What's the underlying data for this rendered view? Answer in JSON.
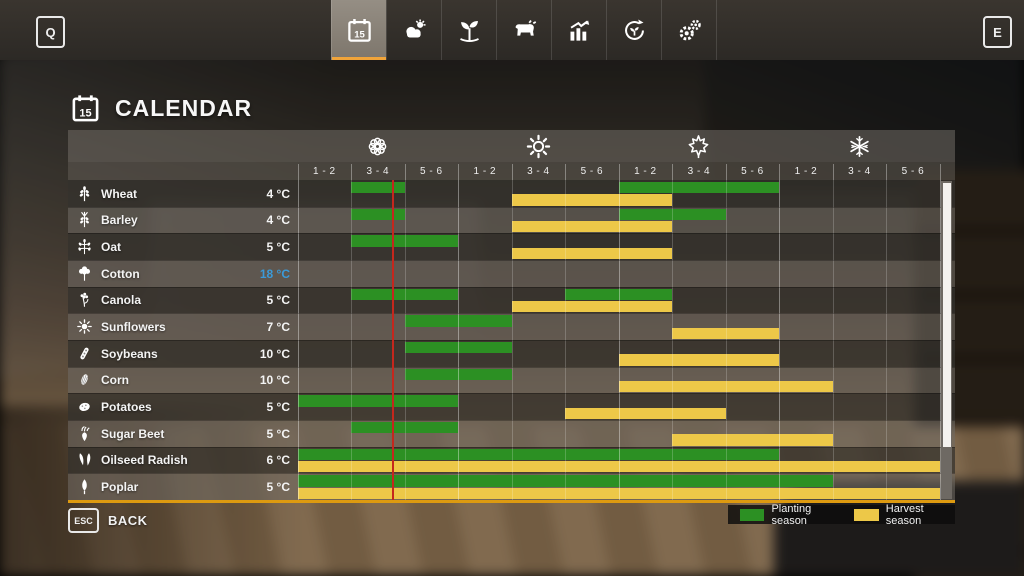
{
  "topbar": {
    "left_key": "Q",
    "right_key": "E",
    "tabs": [
      {
        "name": "calendar",
        "icon": "calendar-icon",
        "selected": true
      },
      {
        "name": "weather",
        "icon": "weather-icon",
        "selected": false
      },
      {
        "name": "crops",
        "icon": "plant-icon",
        "selected": false
      },
      {
        "name": "animals",
        "icon": "animals-icon",
        "selected": false
      },
      {
        "name": "statistics",
        "icon": "stats-icon",
        "selected": false
      },
      {
        "name": "crop-rotation",
        "icon": "rotation-icon",
        "selected": false
      },
      {
        "name": "settings",
        "icon": "settings-icon",
        "selected": false
      }
    ]
  },
  "page": {
    "title": "CALENDAR"
  },
  "chart_data": {
    "type": "table",
    "title": "CALENDAR",
    "seasons": [
      {
        "name": "spring",
        "icon": "flower-icon"
      },
      {
        "name": "summer",
        "icon": "sun-icon"
      },
      {
        "name": "autumn",
        "icon": "leaf-icon"
      },
      {
        "name": "winter",
        "icon": "snowflake-icon"
      }
    ],
    "period_labels": [
      "1 - 2",
      "3 - 4",
      "5 - 6"
    ],
    "columns_per_season": 3,
    "current_position": 1.77,
    "crops": [
      {
        "name": "Wheat",
        "temp": "4 °C",
        "temp_highlight": false,
        "icon": "wheat-icon",
        "planting": [
          [
            1,
            2
          ],
          [
            6,
            9
          ]
        ],
        "harvest": [
          [
            4,
            7
          ]
        ]
      },
      {
        "name": "Barley",
        "temp": "4 °C",
        "temp_highlight": false,
        "icon": "barley-icon",
        "planting": [
          [
            1,
            2
          ],
          [
            6,
            8
          ]
        ],
        "harvest": [
          [
            4,
            7
          ]
        ]
      },
      {
        "name": "Oat",
        "temp": "5 °C",
        "temp_highlight": false,
        "icon": "oat-icon",
        "planting": [
          [
            1,
            3
          ]
        ],
        "harvest": [
          [
            4,
            7
          ]
        ]
      },
      {
        "name": "Cotton",
        "temp": "18 °C",
        "temp_highlight": true,
        "icon": "cotton-icon",
        "planting": [],
        "harvest": []
      },
      {
        "name": "Canola",
        "temp": "5 °C",
        "temp_highlight": false,
        "icon": "canola-icon",
        "planting": [
          [
            1,
            3
          ],
          [
            5,
            7
          ]
        ],
        "harvest": [
          [
            4,
            7
          ]
        ]
      },
      {
        "name": "Sunflowers",
        "temp": "7 °C",
        "temp_highlight": false,
        "icon": "sunflower-icon",
        "planting": [
          [
            2,
            4
          ]
        ],
        "harvest": [
          [
            7,
            9
          ]
        ]
      },
      {
        "name": "Soybeans",
        "temp": "10 °C",
        "temp_highlight": false,
        "icon": "soybean-icon",
        "planting": [
          [
            2,
            4
          ]
        ],
        "harvest": [
          [
            6,
            9
          ]
        ]
      },
      {
        "name": "Corn",
        "temp": "10 °C",
        "temp_highlight": false,
        "icon": "corn-icon",
        "planting": [
          [
            2,
            4
          ]
        ],
        "harvest": [
          [
            6,
            10
          ]
        ]
      },
      {
        "name": "Potatoes",
        "temp": "5 °C",
        "temp_highlight": false,
        "icon": "potato-icon",
        "planting": [
          [
            0,
            3
          ]
        ],
        "harvest": [
          [
            5,
            8
          ]
        ]
      },
      {
        "name": "Sugar Beet",
        "temp": "5 °C",
        "temp_highlight": false,
        "icon": "sugarbeet-icon",
        "planting": [
          [
            1,
            3
          ]
        ],
        "harvest": [
          [
            7,
            10
          ]
        ]
      },
      {
        "name": "Oilseed Radish",
        "temp": "6 °C",
        "temp_highlight": false,
        "icon": "radish-icon",
        "planting": [
          [
            0,
            9
          ]
        ],
        "harvest": [
          [
            0,
            12
          ]
        ]
      },
      {
        "name": "Poplar",
        "temp": "5 °C",
        "temp_highlight": false,
        "icon": "poplar-icon",
        "planting": [
          [
            0,
            10
          ]
        ],
        "harvest": [
          [
            0,
            12
          ]
        ]
      }
    ],
    "legend": [
      {
        "label": "Planting season",
        "color": "#2c9023"
      },
      {
        "label": "Harvest season",
        "color": "#edc848"
      }
    ]
  },
  "colors": {
    "planting": "#2c9023",
    "harvest": "#edc848",
    "current_day_line": "#c5271d",
    "accent_orange": "#f0a43a",
    "temp_highlight": "#3b9ad8"
  },
  "footer": {
    "esc_key": "ESC",
    "back_label": "BACK"
  }
}
